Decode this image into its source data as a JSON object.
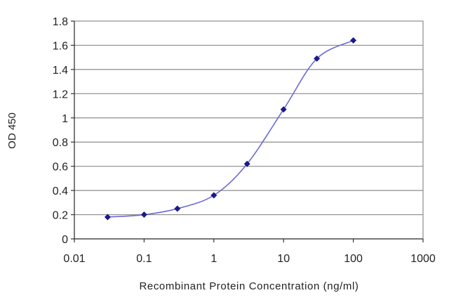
{
  "chart_data": {
    "type": "line",
    "xlabel": "Recombinant Protein Concentration (ng/ml)",
    "ylabel": "OD 450",
    "x_scale": "log",
    "xlim": [
      0.01,
      1000
    ],
    "ylim": [
      0,
      1.8
    ],
    "x_ticks": [
      "0.01",
      "0.1",
      "1",
      "10",
      "100",
      "1000"
    ],
    "y_ticks": [
      "0",
      "0.2",
      "0.4",
      "0.6",
      "0.8",
      "1",
      "1.2",
      "1.4",
      "1.6",
      "1.8"
    ],
    "grid": "horizontal",
    "series": [
      {
        "x": [
          0.03,
          0.1,
          0.3,
          1,
          3,
          10,
          30,
          100
        ],
        "values": [
          0.18,
          0.2,
          0.25,
          0.36,
          0.62,
          1.07,
          1.49,
          1.64
        ]
      }
    ],
    "colors": {
      "line": "#6a6ad8",
      "marker": "#1a1a8c",
      "grid": "#8c8c8c"
    }
  }
}
